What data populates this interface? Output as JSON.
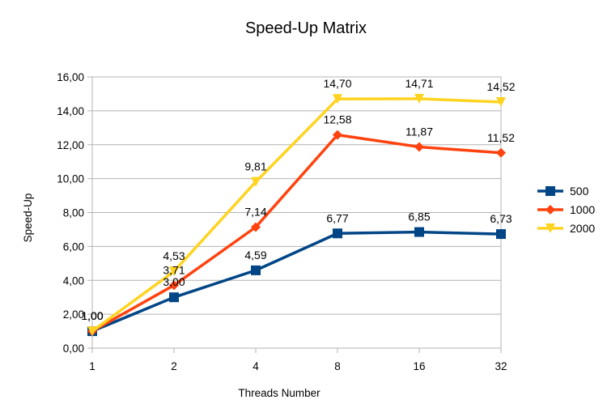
{
  "chart_data": {
    "type": "line",
    "title": "Speed-Up Matrix",
    "xlabel": "Threads Number",
    "ylabel": "Speed-Up",
    "categories": [
      "1",
      "2",
      "4",
      "8",
      "16",
      "32"
    ],
    "ylim": [
      0,
      16
    ],
    "ytick_step": 2,
    "ytick_labels": [
      "0,00",
      "2,00",
      "4,00",
      "6,00",
      "8,00",
      "10,00",
      "12,00",
      "14,00",
      "16,00"
    ],
    "grid": "horizontal",
    "legend_position": "right",
    "series": [
      {
        "name": "500",
        "color": "#004586",
        "marker": "square",
        "values": [
          1.0,
          3.0,
          4.59,
          6.77,
          6.85,
          6.73
        ],
        "labels": [
          "1,00",
          "3,00",
          "4,59",
          "6,77",
          "6,85",
          "6,73"
        ]
      },
      {
        "name": "1000",
        "color": "#ff420e",
        "marker": "diamond",
        "values": [
          1.0,
          3.71,
          7.14,
          12.58,
          11.87,
          11.52
        ],
        "labels": [
          "1,00",
          "3,71",
          "7,14",
          "12,58",
          "11,87",
          "11,52"
        ]
      },
      {
        "name": "2000",
        "color": "#ffd320",
        "marker": "triangle-down",
        "values": [
          1.0,
          4.53,
          9.81,
          14.7,
          14.71,
          14.52
        ],
        "labels": [
          "1,00",
          "4,53",
          "9,81",
          "14,70",
          "14,71",
          "14,52"
        ]
      }
    ]
  }
}
